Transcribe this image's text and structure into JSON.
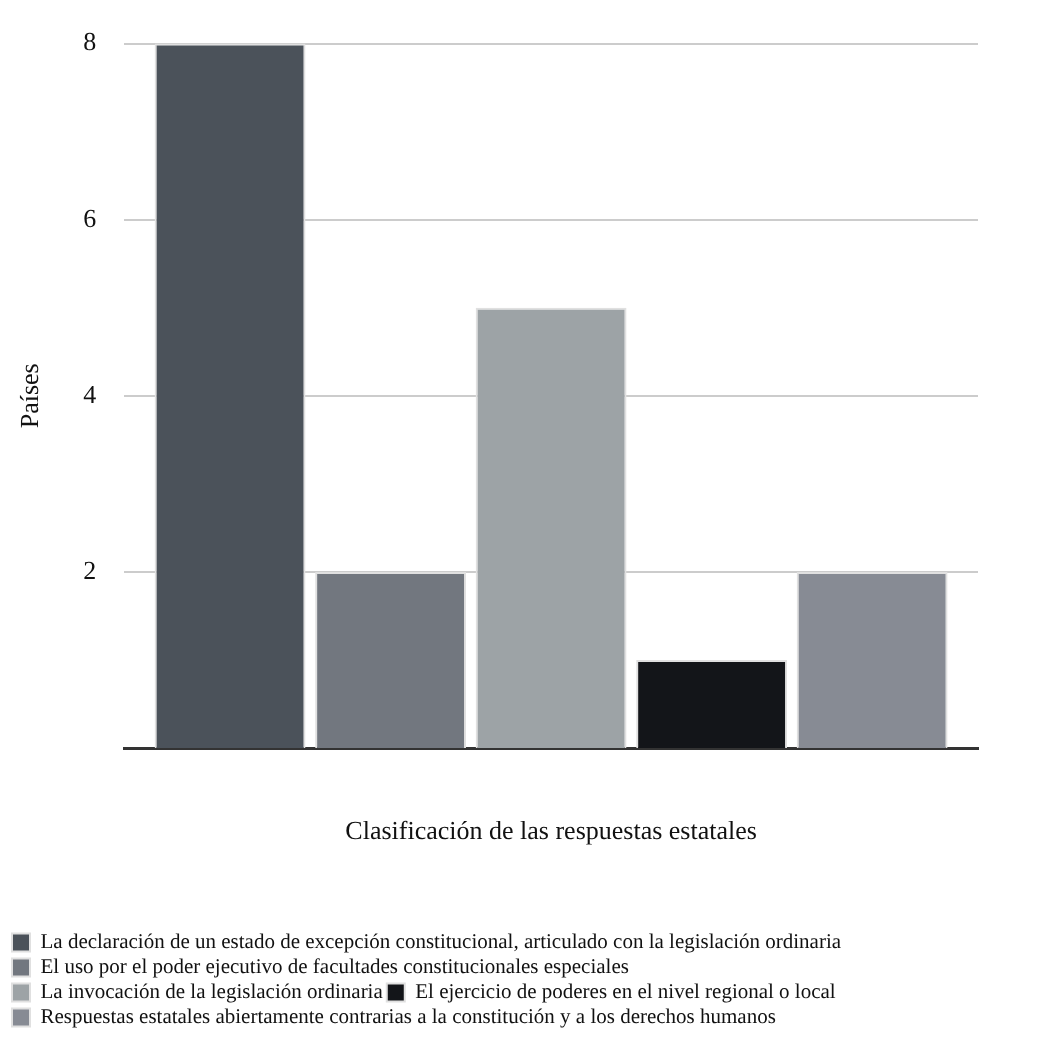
{
  "chart_data": {
    "type": "bar",
    "xlabel": "Clasificación de las respuestas estatales",
    "ylabel": "Países",
    "categories": [
      null
    ],
    "series": [
      {
        "name": "La declaración de un estado de excepción constitucional, articulado con la legislación ordinaria",
        "color": "#4b525a",
        "values": [
          8
        ]
      },
      {
        "name": "El uso por el poder ejecutivo de facultades constitucionales especiales",
        "color": "#72777f",
        "values": [
          2
        ]
      },
      {
        "name": "La invocación de la legislación ordinaria",
        "color": "#9da3a6",
        "values": [
          5
        ]
      },
      {
        "name": "El ejercicio de poderes en el nivel regional o local",
        "color": "#131519",
        "values": [
          1
        ]
      },
      {
        "name": "Respuestas estatales abiertamente contrarias a la constitución y a los derechos humanos",
        "color": "#878b94",
        "values": [
          2
        ]
      }
    ],
    "ylim": [
      0,
      8
    ],
    "yticks": [
      2,
      4,
      6,
      8
    ],
    "grid": "y",
    "legend": "bottom left"
  }
}
